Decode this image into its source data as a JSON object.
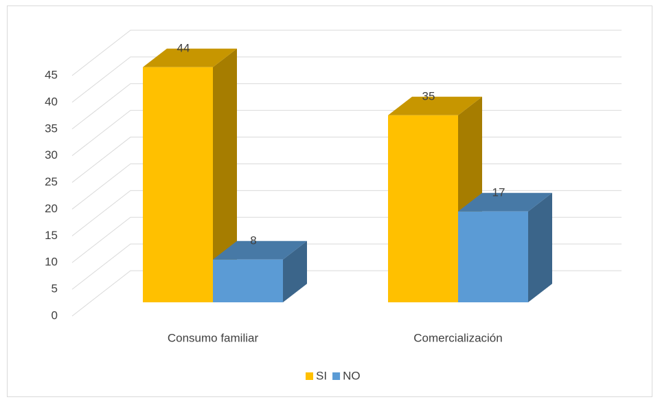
{
  "chart_data": {
    "type": "bar3d",
    "categories": [
      "Consumo familiar",
      "Comercialización"
    ],
    "series": [
      {
        "name": "SI",
        "color": "#ffc000",
        "values": [
          44,
          35
        ]
      },
      {
        "name": "NO",
        "color": "#5b9bd5",
        "values": [
          8,
          17
        ]
      }
    ],
    "ylim": [
      0,
      45
    ],
    "yticks": [
      0,
      5,
      10,
      15,
      20,
      25,
      30,
      35,
      40,
      45
    ],
    "grid": true,
    "legend": "bottom"
  }
}
